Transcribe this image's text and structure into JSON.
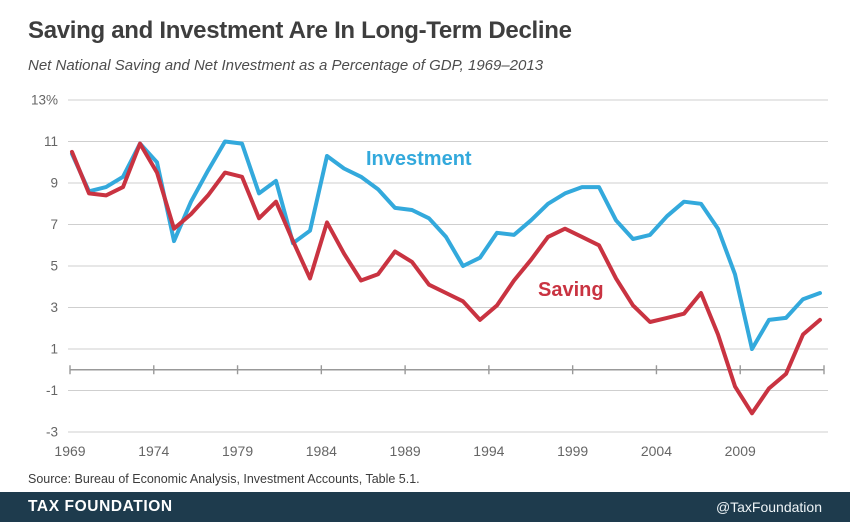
{
  "header": {
    "title": "Saving and Investment Are In Long-Term Decline",
    "subtitle": "Net National Saving and Net Investment as a Percentage of GDP, 1969–2013"
  },
  "source": {
    "text": "Source: Bureau of Economic Analysis, Investment Accounts, Table 5.1."
  },
  "footer": {
    "brand": "TAX FOUNDATION",
    "handle": "@TaxFoundation",
    "bar_color": "#1e3b4d",
    "text_color": "#ffffff"
  },
  "colors": {
    "investment_line": "#33a9dc",
    "saving_line": "#c93341",
    "gridline": "#cfcfcf",
    "axis_line": "#999999",
    "axis_text": "#666666",
    "title_text": "#3e3e3e"
  },
  "chart_data": {
    "type": "line",
    "title": "Saving and Investment Are In Long-Term Decline",
    "subtitle": "Net National Saving and Net Investment as a Percentage of GDP, 1969–2013",
    "xlabel": "",
    "ylabel": "Percentage of GDP",
    "xlim": [
      1969,
      2014
    ],
    "ylim": [
      -3,
      13
    ],
    "grid": "horizontal",
    "legend": "inline-labels",
    "x": [
      1969,
      1970,
      1971,
      1972,
      1973,
      1974,
      1975,
      1976,
      1977,
      1978,
      1979,
      1980,
      1981,
      1982,
      1983,
      1984,
      1985,
      1986,
      1987,
      1988,
      1989,
      1990,
      1991,
      1992,
      1993,
      1994,
      1995,
      1996,
      1997,
      1998,
      1999,
      2000,
      2001,
      2002,
      2003,
      2004,
      2005,
      2006,
      2007,
      2008,
      2009,
      2010,
      2011,
      2012,
      2013
    ],
    "series": [
      {
        "name": "Investment",
        "color": "#33a9dc",
        "values": [
          10.4,
          8.6,
          8.8,
          9.3,
          10.9,
          10.0,
          6.2,
          8.1,
          9.6,
          11.0,
          10.9,
          8.5,
          9.1,
          6.1,
          6.7,
          10.3,
          9.7,
          9.3,
          8.7,
          7.8,
          7.7,
          7.3,
          6.4,
          5.0,
          5.4,
          6.6,
          6.5,
          7.2,
          8.0,
          8.5,
          8.8,
          8.8,
          7.2,
          6.3,
          6.5,
          7.4,
          8.1,
          8.0,
          6.8,
          4.6,
          1.0,
          2.4,
          2.5,
          3.4,
          3.7
        ]
      },
      {
        "name": "Saving",
        "color": "#c93341",
        "values": [
          10.5,
          8.5,
          8.4,
          8.8,
          10.9,
          9.5,
          6.8,
          7.5,
          8.4,
          9.5,
          9.3,
          7.3,
          8.1,
          6.2,
          4.4,
          7.1,
          5.6,
          4.3,
          4.6,
          5.7,
          5.2,
          4.1,
          3.7,
          3.3,
          2.4,
          3.1,
          4.3,
          5.3,
          6.4,
          6.8,
          6.4,
          6.0,
          4.4,
          3.1,
          2.3,
          2.5,
          2.7,
          3.7,
          1.7,
          -0.8,
          -2.1,
          -0.9,
          -0.2,
          1.7,
          2.4
        ]
      }
    ],
    "xticks": [
      1969,
      1974,
      1979,
      1984,
      1989,
      1994,
      1999,
      2004,
      2009
    ],
    "yticks": [
      13,
      11,
      9,
      7,
      5,
      3,
      1,
      -1,
      -3
    ],
    "ytick_labels": [
      "13%",
      "11",
      "9",
      "7",
      "5",
      "3",
      "1",
      "-1",
      "-3"
    ]
  }
}
